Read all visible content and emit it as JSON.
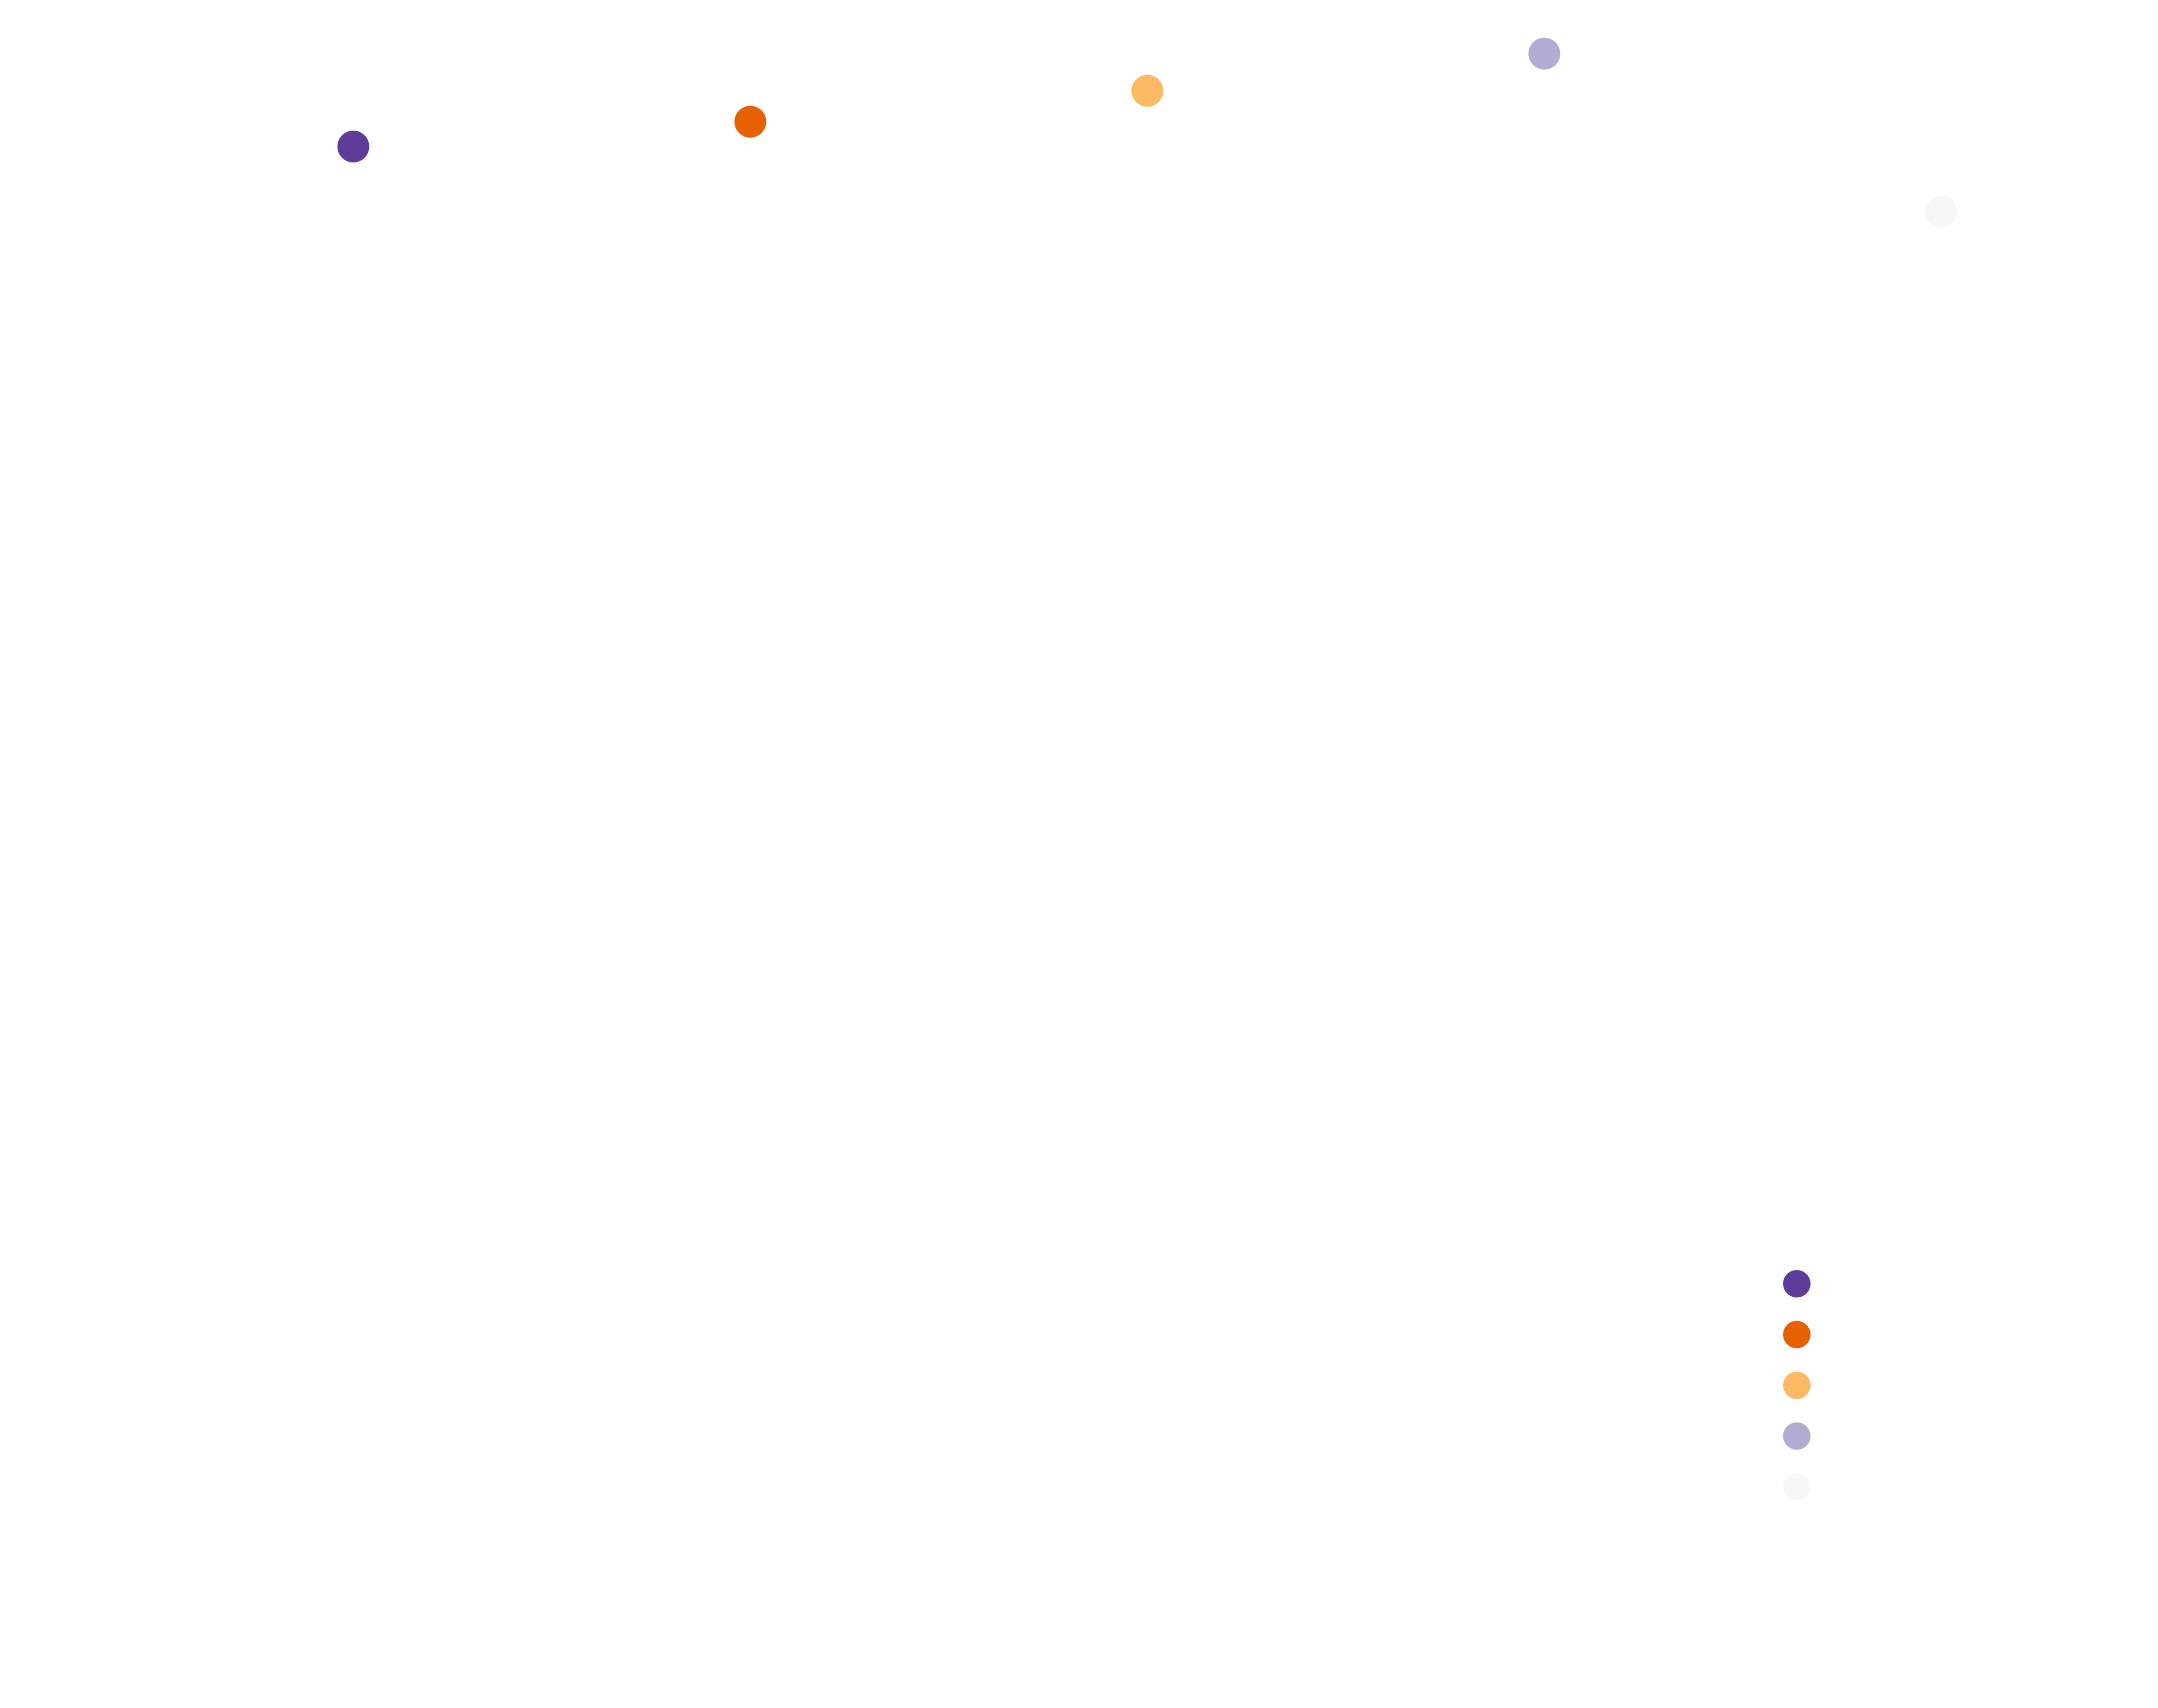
{
  "chart_data": {
    "type": "scatter",
    "title": "",
    "xlabel": "",
    "ylabel": "",
    "grid": false,
    "legend_position": "bottom-right",
    "xlim": [
      0,
      5
    ],
    "ylim": [
      0,
      5
    ],
    "series": [
      {
        "color": "#5e3c99",
        "points": [
          {
            "x": 0.5,
            "y": 4.58
          }
        ]
      },
      {
        "color": "#e66101",
        "points": [
          {
            "x": 1.5,
            "y": 4.66
          }
        ]
      },
      {
        "color": "#fdb863",
        "points": [
          {
            "x": 2.5,
            "y": 4.76
          }
        ]
      },
      {
        "color": "#b2abd2",
        "points": [
          {
            "x": 3.5,
            "y": 4.88
          }
        ]
      },
      {
        "color": "#f7f7f7",
        "points": [
          {
            "x": 4.5,
            "y": 4.37
          }
        ]
      }
    ]
  }
}
